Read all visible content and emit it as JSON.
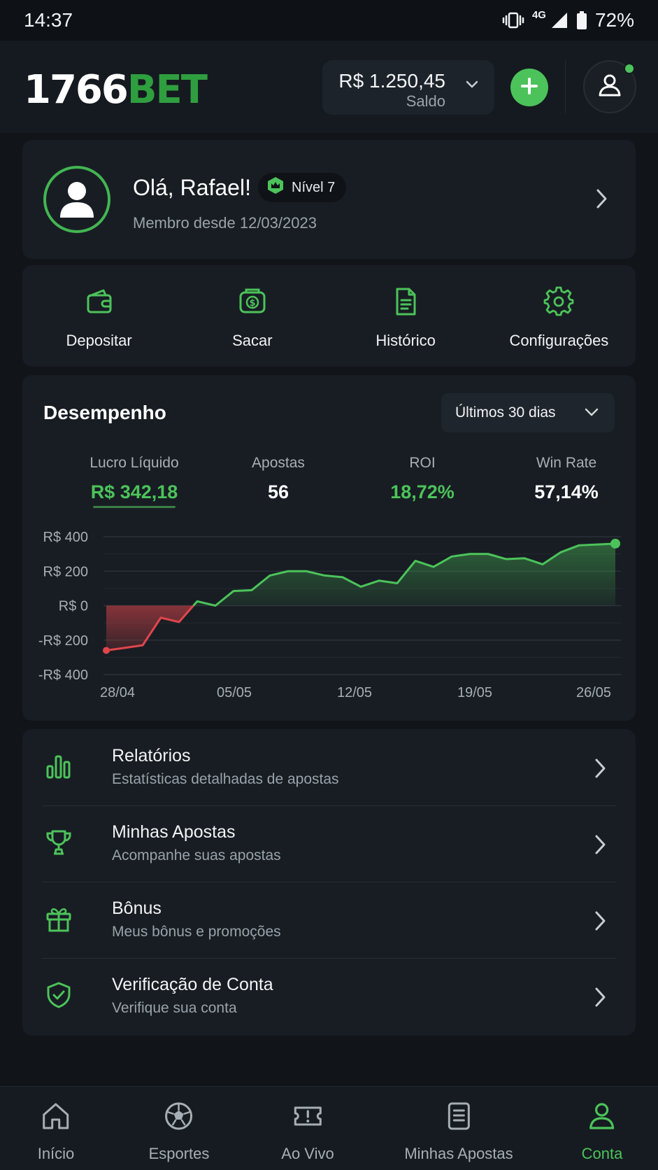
{
  "status_bar": {
    "time": "14:37",
    "network": "4G",
    "battery": "72%"
  },
  "header": {
    "logo_number": "1766",
    "logo_word": "BET",
    "balance_amount": "R$ 1.250,45",
    "balance_label": "Saldo"
  },
  "profile": {
    "greeting": "Olá, Rafael!",
    "level": "Nível 7",
    "member_since": "Membro desde 12/03/2023"
  },
  "quick_actions": [
    {
      "label": "Depositar",
      "icon": "wallet-icon"
    },
    {
      "label": "Sacar",
      "icon": "cash-withdraw-icon"
    },
    {
      "label": "Histórico",
      "icon": "document-icon"
    },
    {
      "label": "Configurações",
      "icon": "gear-icon"
    }
  ],
  "performance": {
    "title": "Desempenho",
    "period": "Últimos 30 dias",
    "stats": [
      {
        "label": "Lucro Líquido",
        "value": "R$ 342,18",
        "color": "#4cc35a"
      },
      {
        "label": "Apostas",
        "value": "56",
        "color": "#ffffff"
      },
      {
        "label": "ROI",
        "value": "18,72%",
        "color": "#4cc35a"
      },
      {
        "label": "Win Rate",
        "value": "57,14%",
        "color": "#ffffff"
      }
    ]
  },
  "chart_data": {
    "type": "area",
    "title": "",
    "xlabel": "",
    "ylabel": "",
    "x_ticks": [
      "28/04",
      "05/05",
      "12/05",
      "19/05",
      "26/05"
    ],
    "y_ticks": [
      "R$ 400",
      "R$ 200",
      "R$ 0",
      "-R$ 200",
      "-R$ 400"
    ],
    "ylim": [
      -400,
      400
    ],
    "x": [
      0,
      1,
      2,
      3,
      4,
      5,
      6,
      7,
      8,
      9,
      10,
      11,
      12,
      13,
      14,
      15,
      16,
      17,
      18,
      19,
      20,
      21,
      22,
      23,
      24,
      25,
      26,
      27,
      28
    ],
    "values": [
      -260,
      -245,
      -230,
      -70,
      -95,
      25,
      0,
      85,
      90,
      175,
      200,
      200,
      175,
      165,
      110,
      145,
      130,
      260,
      225,
      285,
      300,
      300,
      270,
      275,
      240,
      310,
      350,
      355,
      360
    ],
    "positive_color": "#4cc35a",
    "negative_color": "#e0464b",
    "grid": true
  },
  "menu": [
    {
      "title": "Relatórios",
      "subtitle": "Estatísticas detalhadas de apostas",
      "icon": "bar-chart-icon"
    },
    {
      "title": "Minhas Apostas",
      "subtitle": "Acompanhe suas apostas",
      "icon": "trophy-icon"
    },
    {
      "title": "Bônus",
      "subtitle": "Meus bônus e promoções",
      "icon": "gift-icon"
    },
    {
      "title": "Verificação de Conta",
      "subtitle": "Verifique sua conta",
      "icon": "shield-check-icon"
    }
  ],
  "bottom_nav": [
    {
      "label": "Início",
      "icon": "home-icon"
    },
    {
      "label": "Esportes",
      "icon": "soccer-ball-icon"
    },
    {
      "label": "Ao Vivo",
      "icon": "ticket-alert-icon"
    },
    {
      "label": "Minhas Apostas",
      "icon": "bet-slip-icon"
    },
    {
      "label": "Conta",
      "icon": "user-icon",
      "active": true
    }
  ],
  "colors": {
    "accent": "#4cc35a",
    "brand": "#2f9e3f",
    "negative": "#e0464b",
    "background": "#11151a",
    "card": "#181d23"
  }
}
